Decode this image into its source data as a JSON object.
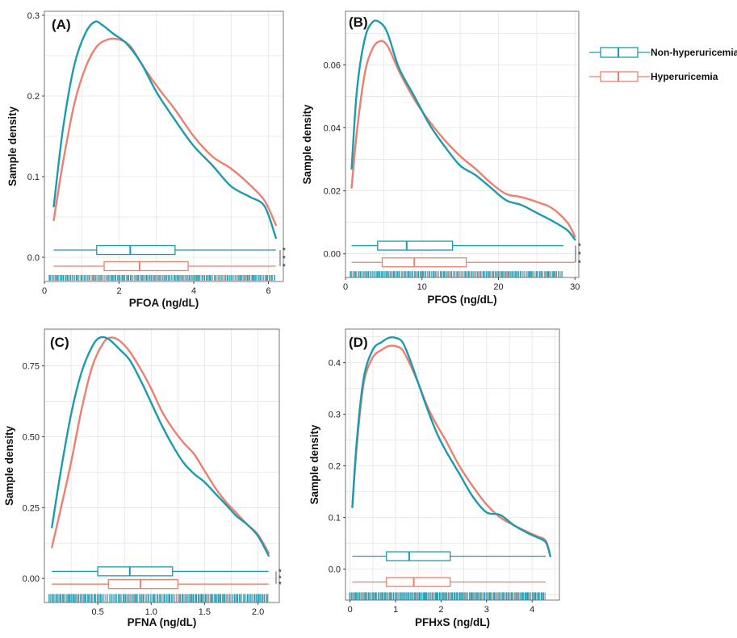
{
  "colors": {
    "non": "#1a9bb0",
    "hyper": "#ee7f6e",
    "grid": "#e4e4e4",
    "frame": "#777777"
  },
  "legend": [
    {
      "label": "Non-hyperuricemia",
      "color": "#1a9bb0"
    },
    {
      "label": "Hyperuricemia",
      "color": "#ee7f6e"
    }
  ],
  "chart_data": [
    {
      "type": "density",
      "panel_label": "(A)",
      "xlabel": "PFOA  (ng/dL)",
      "ylabel": "Sample density",
      "xlim": [
        0,
        6.4
      ],
      "ylim": [
        -0.03,
        0.305
      ],
      "xticks": [
        0,
        2,
        4,
        6
      ],
      "xtick_labels": [
        "0",
        "2",
        "4",
        "6"
      ],
      "yticks": [
        0,
        0.1,
        0.2,
        0.3
      ],
      "ytick_labels": [
        "0.0",
        "0.1",
        "0.2",
        "0.3"
      ],
      "series": [
        {
          "name": "Non-hyperuricemia",
          "x": [
            0.25,
            0.5,
            0.8,
            1.1,
            1.35,
            1.55,
            1.85,
            2.2,
            2.6,
            3.0,
            3.5,
            4.0,
            4.5,
            5.0,
            5.5,
            5.9,
            6.2
          ],
          "y": [
            0.063,
            0.16,
            0.238,
            0.278,
            0.292,
            0.288,
            0.277,
            0.265,
            0.24,
            0.205,
            0.17,
            0.138,
            0.114,
            0.088,
            0.075,
            0.063,
            0.024
          ]
        },
        {
          "name": "Hyperuricemia",
          "x": [
            0.25,
            0.5,
            0.8,
            1.1,
            1.4,
            1.7,
            2.0,
            2.3,
            2.6,
            3.0,
            3.5,
            4.0,
            4.5,
            5.0,
            5.5,
            5.9,
            6.2
          ],
          "y": [
            0.046,
            0.118,
            0.19,
            0.235,
            0.261,
            0.27,
            0.27,
            0.262,
            0.24,
            0.213,
            0.183,
            0.15,
            0.125,
            0.11,
            0.09,
            0.07,
            0.04
          ]
        }
      ],
      "boxplots": [
        {
          "name": "Non-hyperuricemia",
          "y": 0.009,
          "min": 0.25,
          "q1": 1.4,
          "median": 2.3,
          "q3": 3.5,
          "max": 6.2
        },
        {
          "name": "Hyperuricemia",
          "y": -0.011,
          "min": 0.25,
          "q1": 1.6,
          "median": 2.55,
          "q3": 3.85,
          "max": 6.2
        }
      ],
      "rug_y": [
        -0.022,
        -0.029
      ],
      "significance": "* * *"
    },
    {
      "type": "density",
      "panel_label": "(B)",
      "xlabel": "PFOS  (ng/dL)",
      "ylabel": "Sample density",
      "xlim": [
        0,
        30.5
      ],
      "ylim": [
        -0.0075,
        0.077
      ],
      "xticks": [
        0,
        10,
        20,
        30
      ],
      "xtick_labels": [
        "0",
        "10",
        "20",
        "30"
      ],
      "yticks": [
        0,
        0.02,
        0.04,
        0.06
      ],
      "ytick_labels": [
        "0.00",
        "0.02",
        "0.04",
        "0.06"
      ],
      "series": [
        {
          "name": "Non-hyperuricemia",
          "x": [
            0.8,
            1.5,
            2.5,
            3.5,
            4.5,
            5.5,
            7,
            9,
            11,
            13,
            15,
            17,
            19,
            21,
            23,
            25,
            27,
            29,
            30
          ],
          "y": [
            0.027,
            0.052,
            0.068,
            0.0735,
            0.0735,
            0.07,
            0.059,
            0.05,
            0.041,
            0.034,
            0.028,
            0.025,
            0.021,
            0.017,
            0.0155,
            0.013,
            0.0105,
            0.0075,
            0.0045
          ]
        },
        {
          "name": "Hyperuricemia",
          "x": [
            0.8,
            1.5,
            2.5,
            3.5,
            4.5,
            5.5,
            7,
            9,
            11,
            13,
            15,
            17,
            19,
            21,
            23,
            25,
            27,
            29,
            30
          ],
          "y": [
            0.021,
            0.039,
            0.057,
            0.065,
            0.0675,
            0.066,
            0.058,
            0.049,
            0.042,
            0.036,
            0.031,
            0.027,
            0.0225,
            0.019,
            0.018,
            0.0165,
            0.0145,
            0.01,
            0.0055
          ]
        },
        {
          "name": "_unused",
          "x": [],
          "y": []
        }
      ],
      "boxplots": [
        {
          "name": "Non-hyperuricemia",
          "y": 0.0026,
          "min": 0.8,
          "q1": 4.2,
          "median": 8.0,
          "q3": 14.0,
          "max": 28.5
        },
        {
          "name": "Hyperuricemia",
          "y": -0.0027,
          "min": 0.8,
          "q1": 4.8,
          "median": 9.0,
          "q3": 15.8,
          "max": 30.0
        }
      ],
      "rug_y": [
        -0.0055,
        -0.0075
      ],
      "significance": "* * *"
    },
    {
      "type": "density",
      "panel_label": "(C)",
      "xlabel": "PFNA (ng/dL)",
      "ylabel": "Sample density",
      "xlim": [
        0,
        2.2
      ],
      "ylim": [
        -0.085,
        0.88
      ],
      "xticks": [
        0.5,
        1.0,
        1.5,
        2.0
      ],
      "xtick_labels": [
        "0.5",
        "1.0",
        "1.5",
        "2.0"
      ],
      "yticks": [
        0,
        0.25,
        0.5,
        0.75
      ],
      "ytick_labels": [
        "0.00",
        "0.25",
        "0.50",
        "0.75"
      ],
      "series": [
        {
          "name": "Non-hyperuricemia",
          "x": [
            0.07,
            0.15,
            0.25,
            0.35,
            0.45,
            0.52,
            0.6,
            0.7,
            0.8,
            0.9,
            1.0,
            1.1,
            1.2,
            1.3,
            1.4,
            1.5,
            1.6,
            1.7,
            1.8,
            1.9,
            2.0,
            2.1
          ],
          "y": [
            0.18,
            0.37,
            0.58,
            0.73,
            0.82,
            0.85,
            0.845,
            0.81,
            0.77,
            0.7,
            0.62,
            0.54,
            0.47,
            0.41,
            0.37,
            0.34,
            0.3,
            0.26,
            0.22,
            0.19,
            0.15,
            0.08
          ]
        },
        {
          "name": "Hyperuricemia",
          "x": [
            0.07,
            0.15,
            0.25,
            0.35,
            0.45,
            0.55,
            0.62,
            0.7,
            0.8,
            0.9,
            1.0,
            1.1,
            1.2,
            1.3,
            1.4,
            1.5,
            1.6,
            1.7,
            1.8,
            1.9,
            2.0,
            2.1
          ],
          "y": [
            0.11,
            0.24,
            0.41,
            0.6,
            0.75,
            0.83,
            0.85,
            0.84,
            0.8,
            0.74,
            0.67,
            0.59,
            0.53,
            0.48,
            0.44,
            0.38,
            0.32,
            0.27,
            0.23,
            0.19,
            0.155,
            0.09
          ]
        }
      ],
      "boxplots": [
        {
          "name": "Non-hyperuricemia",
          "y": 0.025,
          "min": 0.07,
          "q1": 0.5,
          "median": 0.8,
          "q3": 1.2,
          "max": 2.1
        },
        {
          "name": "Hyperuricemia",
          "y": -0.02,
          "min": 0.07,
          "q1": 0.6,
          "median": 0.9,
          "q3": 1.25,
          "max": 2.1
        }
      ],
      "rug_y": [
        -0.055,
        -0.085
      ],
      "significance": "* * *"
    },
    {
      "type": "density",
      "panel_label": "(D)",
      "xlabel": "PFHxS  (ng/dL)",
      "ylabel": "Sample density",
      "xlim": [
        -0.1,
        4.6
      ],
      "ylim": [
        -0.06,
        0.465
      ],
      "xticks": [
        0,
        1,
        2,
        3,
        4
      ],
      "xtick_labels": [
        "0",
        "1",
        "2",
        "3",
        "4"
      ],
      "yticks": [
        0,
        0.1,
        0.2,
        0.3,
        0.4
      ],
      "ytick_labels": [
        "0.0",
        "0.1",
        "0.2",
        "0.3",
        "0.4"
      ],
      "series": [
        {
          "name": "Non-hyperuricemia",
          "x": [
            0.05,
            0.15,
            0.3,
            0.5,
            0.7,
            0.85,
            1.0,
            1.15,
            1.3,
            1.5,
            1.7,
            1.9,
            2.1,
            2.4,
            2.7,
            3.0,
            3.3,
            3.6,
            3.9,
            4.1,
            4.3,
            4.4
          ],
          "y": [
            0.12,
            0.25,
            0.37,
            0.425,
            0.44,
            0.448,
            0.448,
            0.44,
            0.41,
            0.36,
            0.31,
            0.265,
            0.23,
            0.185,
            0.14,
            0.11,
            0.105,
            0.085,
            0.07,
            0.062,
            0.052,
            0.025
          ]
        },
        {
          "name": "Hyperuricemia",
          "x": [
            0.05,
            0.15,
            0.3,
            0.5,
            0.7,
            0.85,
            1.0,
            1.15,
            1.3,
            1.5,
            1.7,
            1.9,
            2.1,
            2.4,
            2.7,
            3.0,
            3.3,
            3.6,
            3.9,
            4.1,
            4.3,
            4.4
          ],
          "y": [
            0.12,
            0.24,
            0.36,
            0.41,
            0.425,
            0.432,
            0.432,
            0.425,
            0.4,
            0.36,
            0.315,
            0.28,
            0.25,
            0.2,
            0.16,
            0.125,
            0.1,
            0.085,
            0.072,
            0.064,
            0.055,
            0.025
          ]
        }
      ],
      "boxplots": [
        {
          "name": "Non-hyperuricemia",
          "y": 0.025,
          "min": 0.05,
          "q1": 0.8,
          "median": 1.3,
          "q3": 2.2,
          "max": 4.3
        },
        {
          "name": "Hyperuricemia",
          "y": -0.025,
          "min": 0.05,
          "q1": 0.8,
          "median": 1.4,
          "q3": 2.2,
          "max": 4.3
        }
      ],
      "rug_y": [
        -0.045,
        -0.06
      ],
      "significance": ""
    }
  ]
}
